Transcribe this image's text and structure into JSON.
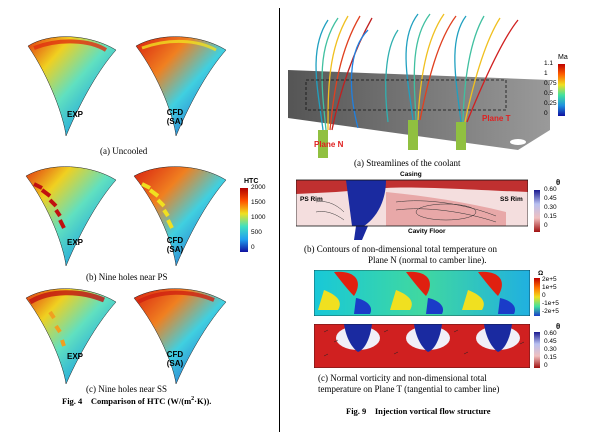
{
  "fig4": {
    "rows": [
      {
        "left_label": "EXP",
        "right_label_1": "CFD",
        "right_label_2": "(SA)",
        "caption": "(a)  Uncooled"
      },
      {
        "left_label": "EXP",
        "right_label_1": "CFD",
        "right_label_2": "(SA)",
        "caption": "(b)  Nine holes near PS"
      },
      {
        "left_label": "EXP",
        "right_label_1": "CFD",
        "right_label_2": "(SA)",
        "caption": "(c)  Nine holes near SS"
      }
    ],
    "colorbar": {
      "title": "HTC",
      "ticks": [
        "2000",
        "1500",
        "1000",
        "500",
        "0"
      ]
    },
    "caption_num": "Fig. 4",
    "caption_text": "Comparison of HTC (W/(m",
    "caption_sup": "2",
    "caption_end": "·K))."
  },
  "fig9": {
    "a": {
      "plane_n": "Plane N",
      "plane_t": "Plane T",
      "colorbar_title": "Ma",
      "ticks": [
        "1.1",
        "1",
        "0.75",
        "0.5",
        "0.25",
        "0"
      ],
      "caption": "(a)  Streamlines of the coolant"
    },
    "b": {
      "casing": "Casing",
      "ps_rim": "PS Rim",
      "ss_rim": "SS Rim",
      "cavity_floor": "Cavity Floor",
      "colorbar_title": "θ",
      "ticks": [
        "0.60",
        "0.45",
        "0.30",
        "0.15",
        "0"
      ],
      "caption_1": "(b)  Contours of non-dimensional total temperature on",
      "caption_2": "Plane N (normal to camber line)."
    },
    "c": {
      "vort_title": "Ω",
      "vort_ticks": [
        "2e+5",
        "1e+5",
        "0",
        "-1e+5",
        "-2e+5"
      ],
      "theta_title": "θ",
      "theta_ticks": [
        "0.60",
        "0.45",
        "0.30",
        "0.15",
        "0"
      ],
      "caption_1": "(c) Normal vorticity and non-dimensional total",
      "caption_2": "temperature on Plane T (tangential to camber line)"
    },
    "caption_num": "Fig. 9",
    "caption_text": "Injection vortical flow structure"
  },
  "colors": {
    "htc_low": "#1a3cc8",
    "htc_mid": "#7ef0c8",
    "htc_high": "#d62a10",
    "theta_high": "#1a2aa0",
    "theta_low": "#c81818"
  }
}
